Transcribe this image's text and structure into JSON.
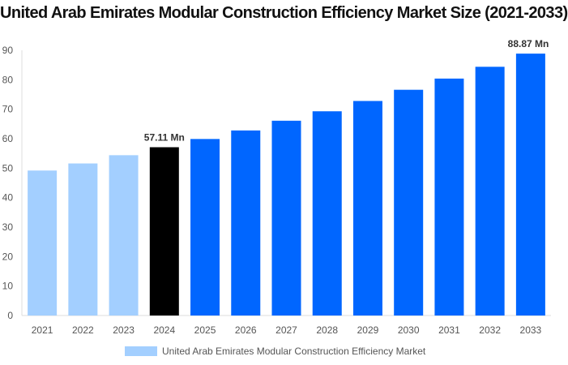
{
  "chart_data": {
    "type": "bar",
    "title": "United Arab Emirates Modular Construction Efficiency Market Size (2021-2033)",
    "categories": [
      "2021",
      "2022",
      "2023",
      "2024",
      "2025",
      "2026",
      "2027",
      "2028",
      "2029",
      "2030",
      "2031",
      "2032",
      "2033"
    ],
    "series": [
      {
        "name": "United Arab Emirates Modular Construction Efficiency Market",
        "values": [
          49.2,
          51.6,
          54.4,
          57.11,
          59.9,
          62.8,
          66.1,
          69.3,
          72.8,
          76.6,
          80.4,
          84.4,
          88.87
        ]
      }
    ],
    "data_labels": {
      "3": "57.11 Mn",
      "12": "88.87 Mn"
    },
    "ylim": [
      0,
      90
    ],
    "yticks": [
      0,
      10,
      20,
      30,
      40,
      50,
      60,
      70,
      80,
      90
    ],
    "grid": false,
    "legend": "bottom",
    "colors": {
      "historical": "#a3cfff",
      "base_year": "#000000",
      "forecast": "#0066ff"
    },
    "bar_color_groups": [
      "historical",
      "historical",
      "historical",
      "base_year",
      "forecast",
      "forecast",
      "forecast",
      "forecast",
      "forecast",
      "forecast",
      "forecast",
      "forecast",
      "forecast"
    ]
  }
}
